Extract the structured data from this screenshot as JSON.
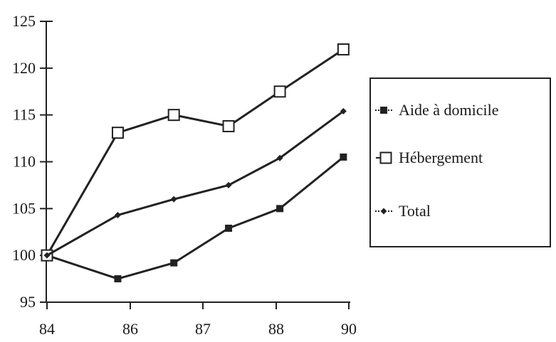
{
  "chart_data": {
    "type": "line",
    "title": "",
    "xlabel": "",
    "ylabel": "",
    "x": [
      84,
      85.7,
      86.6,
      87.35,
      88.1,
      89.85
    ],
    "x_ticks": [
      84,
      86,
      87,
      88,
      90
    ],
    "y_ticks": [
      95,
      100,
      105,
      110,
      115,
      120,
      125
    ],
    "ylim": [
      95,
      125
    ],
    "grid": false,
    "legend_position": "right",
    "series": [
      {
        "name": "Aide à domicile",
        "marker": "filled-square",
        "color": "#222222",
        "values": [
          100,
          97.5,
          99.2,
          102.9,
          105.0,
          110.5
        ]
      },
      {
        "name": "Hébergement",
        "marker": "open-square",
        "color": "#222222",
        "values": [
          100,
          113.1,
          115.0,
          113.8,
          117.5,
          122.0
        ]
      },
      {
        "name": "Total",
        "marker": "diamond",
        "color": "#222222",
        "values": [
          100,
          104.3,
          106.0,
          107.5,
          110.4,
          115.4
        ]
      }
    ]
  }
}
